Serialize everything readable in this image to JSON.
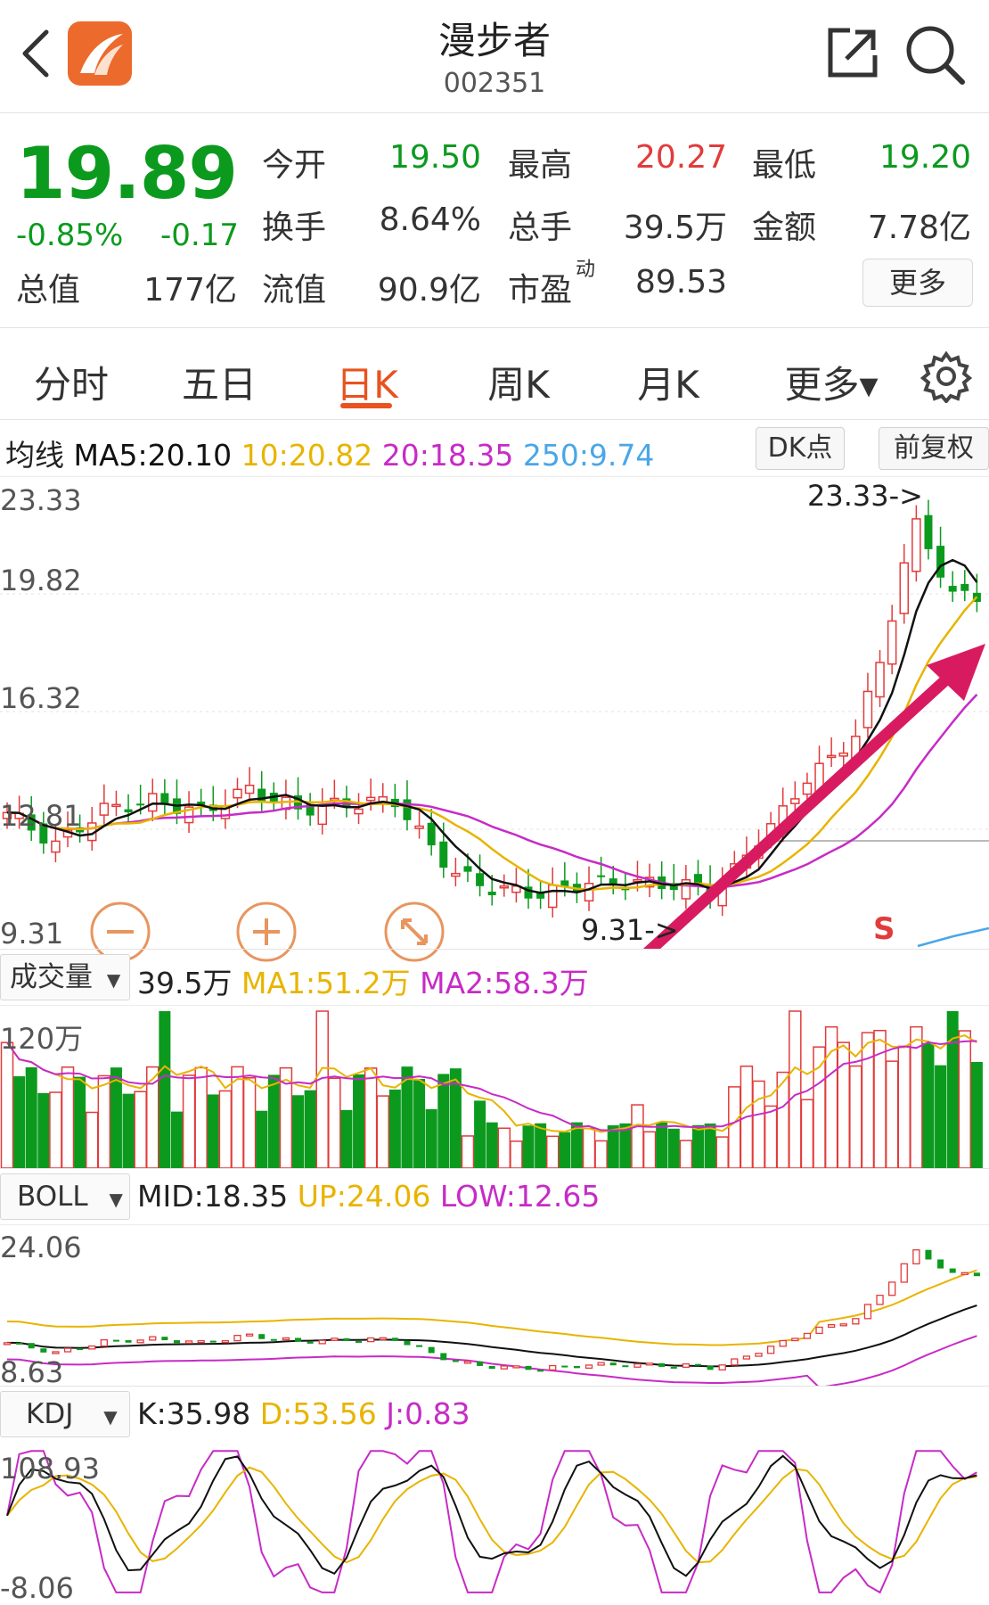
{
  "header": {
    "title": "漫步者",
    "code": "002351"
  },
  "quote": {
    "price": "19.89",
    "change_pct": "-0.85%",
    "change": "-0.17",
    "fields": [
      {
        "label": "今开",
        "value": "19.50",
        "color": "#0b9a1e"
      },
      {
        "label": "最高",
        "value": "20.27",
        "color": "#e23b3b"
      },
      {
        "label": "最低",
        "value": "19.20",
        "color": "#0b9a1e"
      },
      {
        "label": "换手",
        "value": "8.64%",
        "color": "#333333"
      },
      {
        "label": "总手",
        "value": "39.5万",
        "color": "#333333"
      },
      {
        "label": "金额",
        "value": "7.78亿",
        "color": "#333333"
      },
      {
        "label": "总值",
        "value": "177亿",
        "color": "#333333"
      },
      {
        "label": "流值",
        "value": "90.9亿",
        "color": "#333333"
      },
      {
        "label": "市盈",
        "value": "89.53",
        "color": "#333333",
        "superscript": "动"
      }
    ],
    "more_label": "更多"
  },
  "tabs": [
    {
      "label": "分时"
    },
    {
      "label": "五日"
    },
    {
      "label": "日K",
      "active": true
    },
    {
      "label": "周K"
    },
    {
      "label": "月K"
    },
    {
      "label": "更多▾"
    }
  ],
  "ma_line": {
    "label": "均线",
    "ma5": "MA5:20.10",
    "ma10": "10:20.82",
    "ma20": "20:18.35",
    "ma250": "250:9.74",
    "dk_label": "DK点",
    "fq_label": "前复权"
  },
  "kline": {
    "y_axis": [
      "23.33",
      "19.82",
      "16.32",
      "12.81",
      "9.31"
    ],
    "high_marker": "23.33->",
    "low_marker": "9.31->",
    "signal": "S"
  },
  "volume": {
    "selector": "成交量",
    "value": "39.5万",
    "ma1": "MA1:51.2万",
    "ma2": "MA2:58.3万",
    "y_top": "120万"
  },
  "boll": {
    "selector": "BOLL",
    "mid": "MID:18.35",
    "up": "UP:24.06",
    "low": "LOW:12.65",
    "y_top": "24.06",
    "y_bottom": "8.63"
  },
  "kdj": {
    "selector": "KDJ",
    "k": "K:35.98",
    "d": "D:53.56",
    "j": "J:0.83",
    "y_top": "108.93",
    "y_bottom": "-8.06"
  },
  "colors": {
    "up": "#e23b3b",
    "down": "#0b9a1e",
    "accent": "#e8531f",
    "ma5": "#111111",
    "ma10": "#e8b400",
    "ma20": "#c72bc6",
    "ma250": "#4aa6e8",
    "arrow": "#d81b60"
  },
  "icons": [
    "back-icon",
    "app-logo-icon",
    "share-icon",
    "search-icon",
    "gear-icon",
    "zoom-out-icon",
    "zoom-in-icon",
    "expand-icon",
    "dropdown-icon"
  ]
}
